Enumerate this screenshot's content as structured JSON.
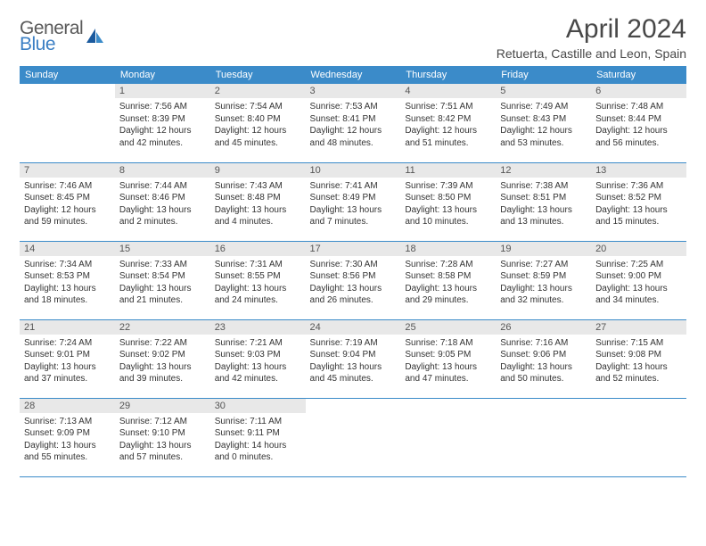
{
  "logo": {
    "top": "General",
    "bottom": "Blue"
  },
  "title": "April 2024",
  "location": "Retuerta, Castille and Leon, Spain",
  "weekdays": [
    "Sunday",
    "Monday",
    "Tuesday",
    "Wednesday",
    "Thursday",
    "Friday",
    "Saturday"
  ],
  "colors": {
    "header_bg": "#3b8bc9",
    "header_text": "#ffffff",
    "daynum_bg": "#e8e8e8",
    "daynum_text": "#555555",
    "body_text": "#333333",
    "border": "#3b8bc9",
    "logo_gray": "#5a5a5a",
    "logo_blue": "#3b7fc4",
    "title_text": "#484848"
  },
  "rows": [
    [
      null,
      {
        "num": "1",
        "sunrise": "Sunrise: 7:56 AM",
        "sunset": "Sunset: 8:39 PM",
        "daylight1": "Daylight: 12 hours",
        "daylight2": "and 42 minutes."
      },
      {
        "num": "2",
        "sunrise": "Sunrise: 7:54 AM",
        "sunset": "Sunset: 8:40 PM",
        "daylight1": "Daylight: 12 hours",
        "daylight2": "and 45 minutes."
      },
      {
        "num": "3",
        "sunrise": "Sunrise: 7:53 AM",
        "sunset": "Sunset: 8:41 PM",
        "daylight1": "Daylight: 12 hours",
        "daylight2": "and 48 minutes."
      },
      {
        "num": "4",
        "sunrise": "Sunrise: 7:51 AM",
        "sunset": "Sunset: 8:42 PM",
        "daylight1": "Daylight: 12 hours",
        "daylight2": "and 51 minutes."
      },
      {
        "num": "5",
        "sunrise": "Sunrise: 7:49 AM",
        "sunset": "Sunset: 8:43 PM",
        "daylight1": "Daylight: 12 hours",
        "daylight2": "and 53 minutes."
      },
      {
        "num": "6",
        "sunrise": "Sunrise: 7:48 AM",
        "sunset": "Sunset: 8:44 PM",
        "daylight1": "Daylight: 12 hours",
        "daylight2": "and 56 minutes."
      }
    ],
    [
      {
        "num": "7",
        "sunrise": "Sunrise: 7:46 AM",
        "sunset": "Sunset: 8:45 PM",
        "daylight1": "Daylight: 12 hours",
        "daylight2": "and 59 minutes."
      },
      {
        "num": "8",
        "sunrise": "Sunrise: 7:44 AM",
        "sunset": "Sunset: 8:46 PM",
        "daylight1": "Daylight: 13 hours",
        "daylight2": "and 2 minutes."
      },
      {
        "num": "9",
        "sunrise": "Sunrise: 7:43 AM",
        "sunset": "Sunset: 8:48 PM",
        "daylight1": "Daylight: 13 hours",
        "daylight2": "and 4 minutes."
      },
      {
        "num": "10",
        "sunrise": "Sunrise: 7:41 AM",
        "sunset": "Sunset: 8:49 PM",
        "daylight1": "Daylight: 13 hours",
        "daylight2": "and 7 minutes."
      },
      {
        "num": "11",
        "sunrise": "Sunrise: 7:39 AM",
        "sunset": "Sunset: 8:50 PM",
        "daylight1": "Daylight: 13 hours",
        "daylight2": "and 10 minutes."
      },
      {
        "num": "12",
        "sunrise": "Sunrise: 7:38 AM",
        "sunset": "Sunset: 8:51 PM",
        "daylight1": "Daylight: 13 hours",
        "daylight2": "and 13 minutes."
      },
      {
        "num": "13",
        "sunrise": "Sunrise: 7:36 AM",
        "sunset": "Sunset: 8:52 PM",
        "daylight1": "Daylight: 13 hours",
        "daylight2": "and 15 minutes."
      }
    ],
    [
      {
        "num": "14",
        "sunrise": "Sunrise: 7:34 AM",
        "sunset": "Sunset: 8:53 PM",
        "daylight1": "Daylight: 13 hours",
        "daylight2": "and 18 minutes."
      },
      {
        "num": "15",
        "sunrise": "Sunrise: 7:33 AM",
        "sunset": "Sunset: 8:54 PM",
        "daylight1": "Daylight: 13 hours",
        "daylight2": "and 21 minutes."
      },
      {
        "num": "16",
        "sunrise": "Sunrise: 7:31 AM",
        "sunset": "Sunset: 8:55 PM",
        "daylight1": "Daylight: 13 hours",
        "daylight2": "and 24 minutes."
      },
      {
        "num": "17",
        "sunrise": "Sunrise: 7:30 AM",
        "sunset": "Sunset: 8:56 PM",
        "daylight1": "Daylight: 13 hours",
        "daylight2": "and 26 minutes."
      },
      {
        "num": "18",
        "sunrise": "Sunrise: 7:28 AM",
        "sunset": "Sunset: 8:58 PM",
        "daylight1": "Daylight: 13 hours",
        "daylight2": "and 29 minutes."
      },
      {
        "num": "19",
        "sunrise": "Sunrise: 7:27 AM",
        "sunset": "Sunset: 8:59 PM",
        "daylight1": "Daylight: 13 hours",
        "daylight2": "and 32 minutes."
      },
      {
        "num": "20",
        "sunrise": "Sunrise: 7:25 AM",
        "sunset": "Sunset: 9:00 PM",
        "daylight1": "Daylight: 13 hours",
        "daylight2": "and 34 minutes."
      }
    ],
    [
      {
        "num": "21",
        "sunrise": "Sunrise: 7:24 AM",
        "sunset": "Sunset: 9:01 PM",
        "daylight1": "Daylight: 13 hours",
        "daylight2": "and 37 minutes."
      },
      {
        "num": "22",
        "sunrise": "Sunrise: 7:22 AM",
        "sunset": "Sunset: 9:02 PM",
        "daylight1": "Daylight: 13 hours",
        "daylight2": "and 39 minutes."
      },
      {
        "num": "23",
        "sunrise": "Sunrise: 7:21 AM",
        "sunset": "Sunset: 9:03 PM",
        "daylight1": "Daylight: 13 hours",
        "daylight2": "and 42 minutes."
      },
      {
        "num": "24",
        "sunrise": "Sunrise: 7:19 AM",
        "sunset": "Sunset: 9:04 PM",
        "daylight1": "Daylight: 13 hours",
        "daylight2": "and 45 minutes."
      },
      {
        "num": "25",
        "sunrise": "Sunrise: 7:18 AM",
        "sunset": "Sunset: 9:05 PM",
        "daylight1": "Daylight: 13 hours",
        "daylight2": "and 47 minutes."
      },
      {
        "num": "26",
        "sunrise": "Sunrise: 7:16 AM",
        "sunset": "Sunset: 9:06 PM",
        "daylight1": "Daylight: 13 hours",
        "daylight2": "and 50 minutes."
      },
      {
        "num": "27",
        "sunrise": "Sunrise: 7:15 AM",
        "sunset": "Sunset: 9:08 PM",
        "daylight1": "Daylight: 13 hours",
        "daylight2": "and 52 minutes."
      }
    ],
    [
      {
        "num": "28",
        "sunrise": "Sunrise: 7:13 AM",
        "sunset": "Sunset: 9:09 PM",
        "daylight1": "Daylight: 13 hours",
        "daylight2": "and 55 minutes."
      },
      {
        "num": "29",
        "sunrise": "Sunrise: 7:12 AM",
        "sunset": "Sunset: 9:10 PM",
        "daylight1": "Daylight: 13 hours",
        "daylight2": "and 57 minutes."
      },
      {
        "num": "30",
        "sunrise": "Sunrise: 7:11 AM",
        "sunset": "Sunset: 9:11 PM",
        "daylight1": "Daylight: 14 hours",
        "daylight2": "and 0 minutes."
      },
      null,
      null,
      null,
      null
    ]
  ]
}
